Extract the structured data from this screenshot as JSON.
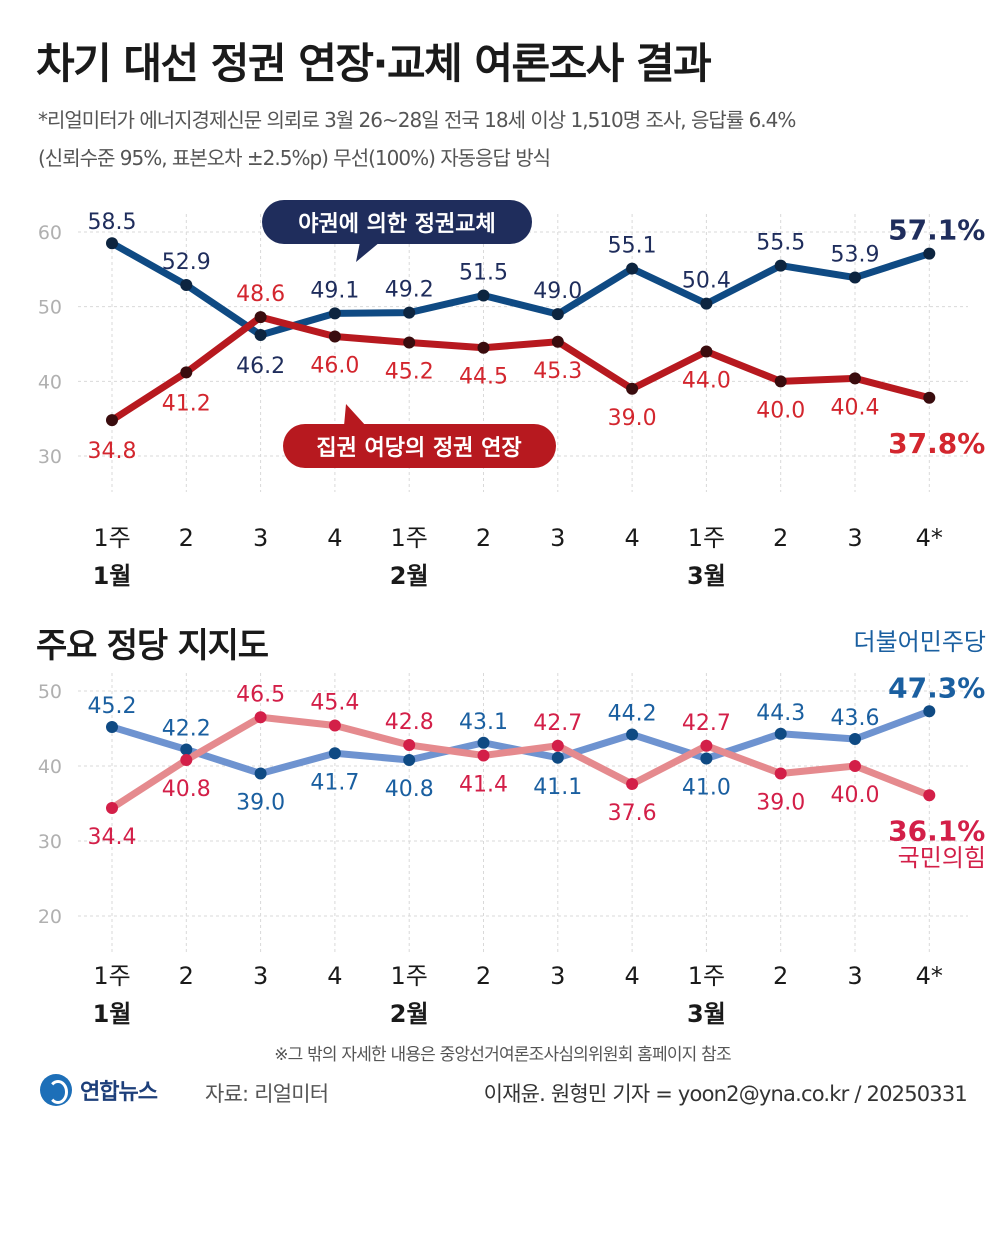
{
  "header": {
    "title": "차기 대선 정권 연장·교체 여론조사 결과",
    "subtitle_line1": "*리얼미터가 에너지경제신문 의뢰로 3월 26~28일 전국 18세 이상 1,510명 조사, 응답률 6.4%",
    "subtitle_line2": "(신뢰수준 95%, 표본오차 ±2.5%p) 무선(100%) 자동응답 방식"
  },
  "colors": {
    "top_series_1": "#0f4a83",
    "top_series_2": "#b7191f",
    "top_label_1": "#1f2d5c",
    "top_label_2": "#d3262e",
    "bottom_series_1": "#6e93d0",
    "bottom_series_1_point": "#0f4a83",
    "bottom_series_2": "#e58a8e",
    "bottom_series_2_point": "#d31f48",
    "bottom_label_1": "#1a5fa0",
    "bottom_label_2": "#d31f48",
    "grid": "#d9d9d9",
    "axis_tick": "#b0b0b0"
  },
  "section2_title": "주요 정당 지지도",
  "x_ticks": [
    "1주",
    "2",
    "3",
    "4",
    "1주",
    "2",
    "3",
    "4",
    "1주",
    "2",
    "3",
    "4*"
  ],
  "month_labels": [
    {
      "index": 0,
      "label": "1월"
    },
    {
      "index": 4,
      "label": "2월"
    },
    {
      "index": 8,
      "label": "3월"
    }
  ],
  "chart_data": [
    {
      "type": "line",
      "categories": [
        "1월 1주",
        "1월 2주",
        "1월 3주",
        "1월 4주",
        "2월 1주",
        "2월 2주",
        "2월 3주",
        "2월 4주",
        "3월 1주",
        "3월 2주",
        "3월 3주",
        "3월 4주*"
      ],
      "series": [
        {
          "name": "야권에 의한 정권교체",
          "values": [
            58.5,
            52.9,
            46.2,
            49.1,
            49.2,
            51.5,
            49.0,
            55.1,
            50.4,
            55.5,
            53.9,
            57.1
          ],
          "labels": [
            "58.5",
            "52.9",
            "46.2",
            "49.1",
            "49.2",
            "51.5",
            "49.0",
            "55.1",
            "50.4",
            "55.5",
            "53.9",
            "57.1"
          ],
          "last_label": "57.1%"
        },
        {
          "name": "집권 여당의 정권 연장",
          "values": [
            34.8,
            41.2,
            48.6,
            46.0,
            45.2,
            44.5,
            45.3,
            39.0,
            44.0,
            40.0,
            40.4,
            37.8
          ],
          "labels": [
            "34.8",
            "41.2",
            "48.6",
            "46.0",
            "45.2",
            "44.5",
            "45.3",
            "39.0",
            "44.0",
            "40.0",
            "40.4",
            "37.8"
          ],
          "last_label": "37.8%"
        }
      ],
      "ylim": [
        30,
        60
      ],
      "yticks": [
        "30",
        "40",
        "50",
        "60"
      ],
      "grid": true
    },
    {
      "type": "line",
      "title": "주요 정당 지지도",
      "categories": [
        "1월 1주",
        "1월 2주",
        "1월 3주",
        "1월 4주",
        "2월 1주",
        "2월 2주",
        "2월 3주",
        "2월 4주",
        "3월 1주",
        "3월 2주",
        "3월 3주",
        "3월 4주*"
      ],
      "series": [
        {
          "name": "더불어민주당",
          "values": [
            45.2,
            42.2,
            39.0,
            41.7,
            40.8,
            43.1,
            41.1,
            44.2,
            41.0,
            44.3,
            43.6,
            47.3
          ],
          "labels": [
            "45.2",
            "42.2",
            "39.0",
            "41.7",
            "40.8",
            "43.1",
            "41.1",
            "44.2",
            "41.0",
            "44.3",
            "43.6",
            "47.3"
          ],
          "last_label": "47.3%"
        },
        {
          "name": "국민의힘",
          "values": [
            34.4,
            40.8,
            46.5,
            45.4,
            42.8,
            41.4,
            42.7,
            37.6,
            42.7,
            39.0,
            40.0,
            36.1
          ],
          "labels": [
            "34.4",
            "40.8",
            "46.5",
            "45.4",
            "42.8",
            "41.4",
            "42.7",
            "37.6",
            "42.7",
            "39.0",
            "40.0",
            "36.1"
          ],
          "last_label": "36.1%"
        }
      ],
      "ylim": [
        20,
        50
      ],
      "yticks": [
        "20",
        "30",
        "40",
        "50"
      ],
      "grid": true
    }
  ],
  "footer": {
    "note": "※그 밖의 자세한 내용은 중앙선거여론조사심의위원회 홈페이지 참조",
    "logo": "연합뉴스",
    "source": "자료: 리얼미터",
    "credit": "이재윤. 원형민 기자 = yoon2@yna.co.kr / 20250331"
  }
}
